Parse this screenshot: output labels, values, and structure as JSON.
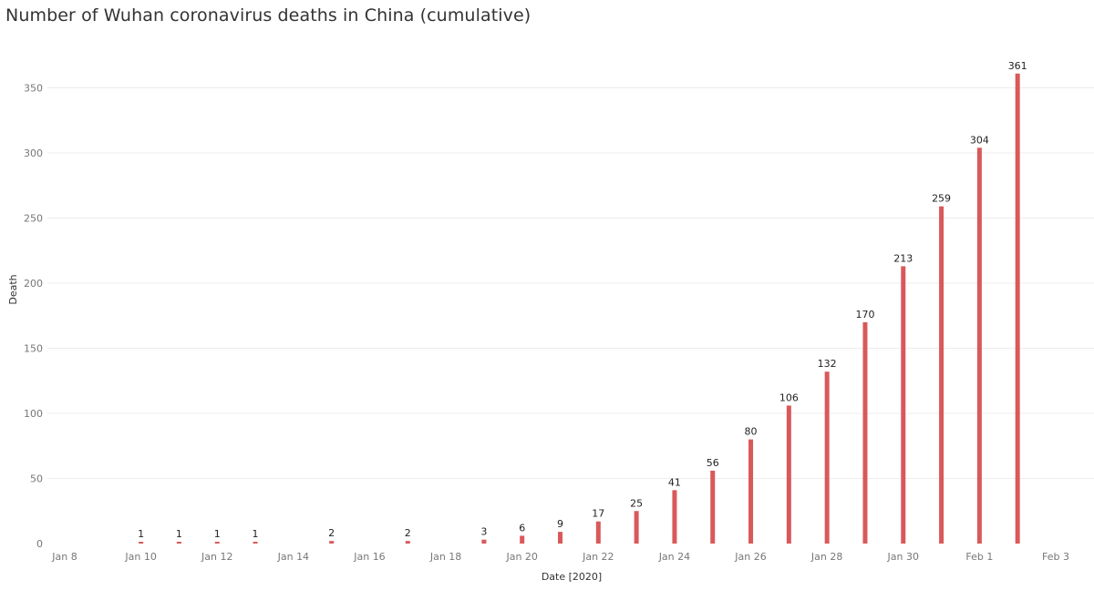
{
  "chart_data": {
    "type": "bar",
    "title": "Number of Wuhan coronavirus deaths in China (cumulative)",
    "xlabel": "Date [2020]",
    "ylabel": "Death",
    "x_ticks": [
      "Jan 8",
      "Jan 10",
      "Jan 12",
      "Jan 14",
      "Jan 16",
      "Jan 18",
      "Jan 20",
      "Jan 22",
      "Jan 24",
      "Jan 26",
      "Jan 28",
      "Jan 30",
      "Feb 1",
      "Feb 3"
    ],
    "x_tick_dates": [
      "2020-01-08",
      "2020-01-10",
      "2020-01-12",
      "2020-01-14",
      "2020-01-16",
      "2020-01-18",
      "2020-01-20",
      "2020-01-22",
      "2020-01-24",
      "2020-01-26",
      "2020-01-28",
      "2020-01-30",
      "2020-02-01",
      "2020-02-03"
    ],
    "y_ticks": [
      0,
      50,
      100,
      150,
      200,
      250,
      300,
      350
    ],
    "ylim": [
      0,
      360
    ],
    "xlim": [
      "2020-01-08",
      "2020-02-03"
    ],
    "grid": true,
    "bar_color": "#d9595a",
    "points": [
      {
        "date": "2020-01-10",
        "value": 1
      },
      {
        "date": "2020-01-11",
        "value": 1
      },
      {
        "date": "2020-01-12",
        "value": 1
      },
      {
        "date": "2020-01-13",
        "value": 1
      },
      {
        "date": "2020-01-15",
        "value": 2
      },
      {
        "date": "2020-01-17",
        "value": 2
      },
      {
        "date": "2020-01-19",
        "value": 3
      },
      {
        "date": "2020-01-20",
        "value": 6
      },
      {
        "date": "2020-01-21",
        "value": 9
      },
      {
        "date": "2020-01-22",
        "value": 17
      },
      {
        "date": "2020-01-23",
        "value": 25
      },
      {
        "date": "2020-01-24",
        "value": 41
      },
      {
        "date": "2020-01-25",
        "value": 56
      },
      {
        "date": "2020-01-26",
        "value": 80
      },
      {
        "date": "2020-01-27",
        "value": 106
      },
      {
        "date": "2020-01-28",
        "value": 132
      },
      {
        "date": "2020-01-29",
        "value": 170
      },
      {
        "date": "2020-01-30",
        "value": 213
      },
      {
        "date": "2020-01-31",
        "value": 259
      },
      {
        "date": "2020-02-01",
        "value": 304
      },
      {
        "date": "2020-02-02",
        "value": 361
      }
    ]
  }
}
